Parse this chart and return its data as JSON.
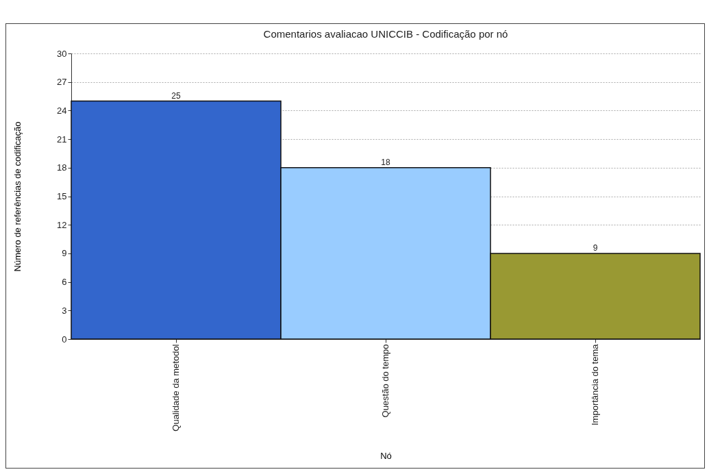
{
  "chart_data": {
    "type": "bar",
    "title": "Comentarios avaliacao UNICCIB - Codificação por nó",
    "xlabel": "Nó",
    "ylabel": "Número de referências de codificação",
    "categories": [
      "Qualidade da metodol",
      "Questão do tempo",
      "Importância do tema"
    ],
    "values": [
      25,
      18,
      9
    ],
    "colors": [
      "#3366cc",
      "#99ccff",
      "#999933"
    ],
    "ylim": [
      0,
      30
    ],
    "yticks": [
      0,
      3,
      6,
      9,
      12,
      15,
      18,
      21,
      24,
      27,
      30
    ],
    "grid": "y",
    "data_labels": true
  }
}
